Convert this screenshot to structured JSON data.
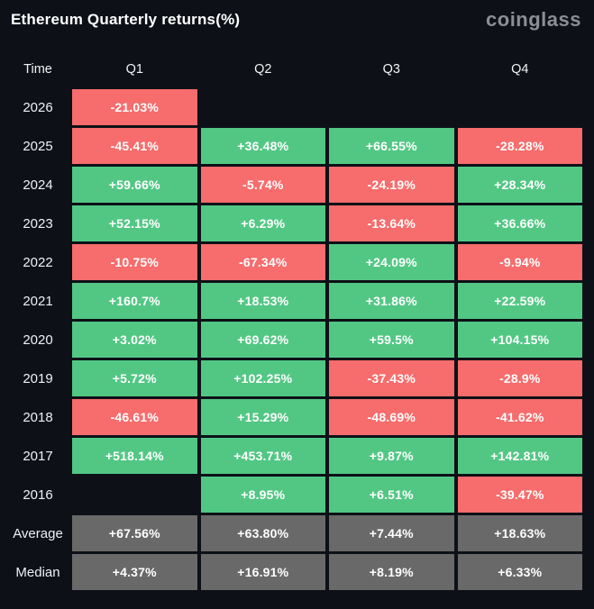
{
  "header": {
    "title": "Ethereum Quarterly returns(%)",
    "logo": "coinglass"
  },
  "colors": {
    "background": "#0d1117",
    "positive": "#52c784",
    "negative": "#f76c6c",
    "summary": "#696969",
    "text": "#ffffff",
    "logo": "#8b8e93"
  },
  "table": {
    "columns": [
      "Time",
      "Q1",
      "Q2",
      "Q3",
      "Q4"
    ],
    "rows": [
      {
        "label": "2026",
        "cells": [
          {
            "value": "-21.03%",
            "color": "red"
          },
          {
            "value": null
          },
          {
            "value": null
          },
          {
            "value": null
          }
        ]
      },
      {
        "label": "2025",
        "cells": [
          {
            "value": "-45.41%",
            "color": "red"
          },
          {
            "value": "+36.48%",
            "color": "green"
          },
          {
            "value": "+66.55%",
            "color": "green"
          },
          {
            "value": "-28.28%",
            "color": "red"
          }
        ]
      },
      {
        "label": "2024",
        "cells": [
          {
            "value": "+59.66%",
            "color": "green"
          },
          {
            "value": "-5.74%",
            "color": "red"
          },
          {
            "value": "-24.19%",
            "color": "red"
          },
          {
            "value": "+28.34%",
            "color": "green"
          }
        ]
      },
      {
        "label": "2023",
        "cells": [
          {
            "value": "+52.15%",
            "color": "green"
          },
          {
            "value": "+6.29%",
            "color": "green"
          },
          {
            "value": "-13.64%",
            "color": "red"
          },
          {
            "value": "+36.66%",
            "color": "green"
          }
        ]
      },
      {
        "label": "2022",
        "cells": [
          {
            "value": "-10.75%",
            "color": "red"
          },
          {
            "value": "-67.34%",
            "color": "red"
          },
          {
            "value": "+24.09%",
            "color": "green"
          },
          {
            "value": "-9.94%",
            "color": "red"
          }
        ]
      },
      {
        "label": "2021",
        "cells": [
          {
            "value": "+160.7%",
            "color": "green"
          },
          {
            "value": "+18.53%",
            "color": "green"
          },
          {
            "value": "+31.86%",
            "color": "green"
          },
          {
            "value": "+22.59%",
            "color": "green"
          }
        ]
      },
      {
        "label": "2020",
        "cells": [
          {
            "value": "+3.02%",
            "color": "green"
          },
          {
            "value": "+69.62%",
            "color": "green"
          },
          {
            "value": "+59.5%",
            "color": "green"
          },
          {
            "value": "+104.15%",
            "color": "green"
          }
        ]
      },
      {
        "label": "2019",
        "cells": [
          {
            "value": "+5.72%",
            "color": "green"
          },
          {
            "value": "+102.25%",
            "color": "green"
          },
          {
            "value": "-37.43%",
            "color": "red"
          },
          {
            "value": "-28.9%",
            "color": "red"
          }
        ]
      },
      {
        "label": "2018",
        "cells": [
          {
            "value": "-46.61%",
            "color": "red"
          },
          {
            "value": "+15.29%",
            "color": "green"
          },
          {
            "value": "-48.69%",
            "color": "red"
          },
          {
            "value": "-41.62%",
            "color": "red"
          }
        ]
      },
      {
        "label": "2017",
        "cells": [
          {
            "value": "+518.14%",
            "color": "green"
          },
          {
            "value": "+453.71%",
            "color": "green"
          },
          {
            "value": "+9.87%",
            "color": "green"
          },
          {
            "value": "+142.81%",
            "color": "green"
          }
        ]
      },
      {
        "label": "2016",
        "cells": [
          {
            "value": null
          },
          {
            "value": "+8.95%",
            "color": "green"
          },
          {
            "value": "+6.51%",
            "color": "green"
          },
          {
            "value": "-39.47%",
            "color": "red"
          }
        ]
      },
      {
        "label": "Average",
        "cells": [
          {
            "value": "+67.56%",
            "color": "gray"
          },
          {
            "value": "+63.80%",
            "color": "gray"
          },
          {
            "value": "+7.44%",
            "color": "gray"
          },
          {
            "value": "+18.63%",
            "color": "gray"
          }
        ]
      },
      {
        "label": "Median",
        "cells": [
          {
            "value": "+4.37%",
            "color": "gray"
          },
          {
            "value": "+16.91%",
            "color": "gray"
          },
          {
            "value": "+8.19%",
            "color": "gray"
          },
          {
            "value": "+6.33%",
            "color": "gray"
          }
        ]
      }
    ]
  },
  "chart_data": {
    "type": "heatmap",
    "title": "Ethereum Quarterly returns(%)",
    "unit": "%",
    "columns": [
      "Q1",
      "Q2",
      "Q3",
      "Q4"
    ],
    "rows": [
      "2026",
      "2025",
      "2024",
      "2023",
      "2022",
      "2021",
      "2020",
      "2019",
      "2018",
      "2017",
      "2016",
      "Average",
      "Median"
    ],
    "values": [
      [
        -21.03,
        null,
        null,
        null
      ],
      [
        -45.41,
        36.48,
        66.55,
        -28.28
      ],
      [
        59.66,
        -5.74,
        -24.19,
        28.34
      ],
      [
        52.15,
        6.29,
        -13.64,
        36.66
      ],
      [
        -10.75,
        -67.34,
        24.09,
        -9.94
      ],
      [
        160.7,
        18.53,
        31.86,
        22.59
      ],
      [
        3.02,
        69.62,
        59.5,
        104.15
      ],
      [
        5.72,
        102.25,
        -37.43,
        -28.9
      ],
      [
        -46.61,
        15.29,
        -48.69,
        -41.62
      ],
      [
        518.14,
        453.71,
        9.87,
        142.81
      ],
      [
        null,
        8.95,
        6.51,
        -39.47
      ],
      [
        67.56,
        63.8,
        7.44,
        18.63
      ],
      [
        4.37,
        16.91,
        8.19,
        6.33
      ]
    ],
    "legend": "green = positive return, red = negative return, gray = summary rows"
  }
}
